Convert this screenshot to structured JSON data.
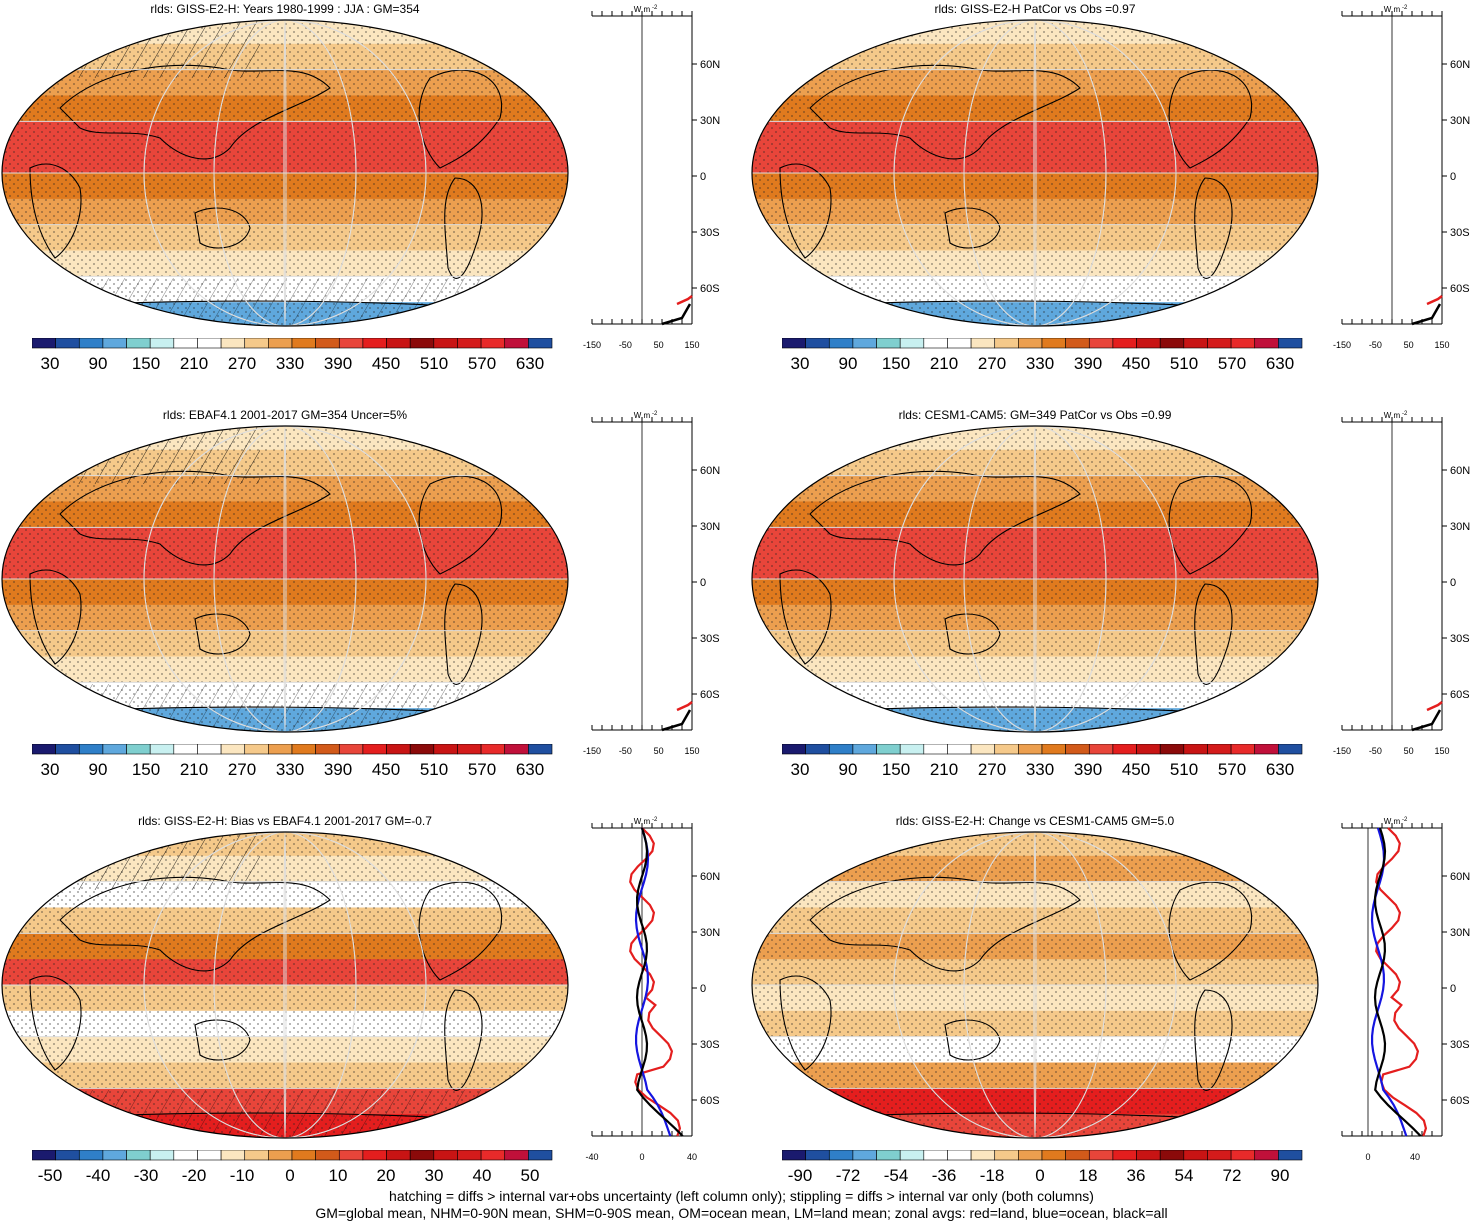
{
  "panels": [
    {
      "title": "rlds: GISS-E2-H: Years 1980-1999 : JJA : GM=354",
      "colorbar": "abs",
      "zonal_mode": "abs"
    },
    {
      "title": "rlds: GISS-E2-H PatCor vs Obs =0.97",
      "colorbar": "abs",
      "zonal_mode": "abs"
    },
    {
      "title": "rlds: EBAF4.1 2001-2017 GM=354 Uncer=5%",
      "colorbar": "abs",
      "zonal_mode": "abs"
    },
    {
      "title": "rlds: CESM1-CAM5: GM=349 PatCor vs Obs =0.99",
      "colorbar": "abs",
      "zonal_mode": "abs"
    },
    {
      "title": "rlds: GISS-E2-H: Bias vs EBAF4.1 2001-2017 GM=-0.7",
      "colorbar": "bias",
      "zonal_mode": "bias"
    },
    {
      "title": "rlds: GISS-E2-H: Change vs CESM1-CAM5 GM=5.0",
      "colorbar": "change",
      "zonal_mode": "change"
    }
  ],
  "colorbars": {
    "abs": [
      "30",
      "90",
      "150",
      "210",
      "270",
      "330",
      "390",
      "450",
      "510",
      "570",
      "630"
    ],
    "bias": [
      "-50",
      "-40",
      "-30",
      "-20",
      "-10",
      "0",
      "10",
      "20",
      "30",
      "40",
      "50"
    ],
    "change": [
      "-90",
      "-72",
      "-54",
      "-36",
      "-18",
      "0",
      "18",
      "36",
      "54",
      "72",
      "90"
    ]
  },
  "colorbar_palette": [
    "#1a1a6e",
    "#1f4fa0",
    "#2f7fc8",
    "#5fa8dd",
    "#7fcfcf",
    "#c8f0f0",
    "#ffffff",
    "#ffffff",
    "#fbe6c0",
    "#f5c98a",
    "#ec9f4f",
    "#e07a1e",
    "#d25a1a",
    "#e8453a",
    "#e41e1e",
    "#c81414",
    "#8b0a0a",
    "#c81414",
    "#d41b1b",
    "#e82a2a",
    "#c0103a",
    "#1f4fa0"
  ],
  "zonal_axis": {
    "unit": "W m",
    "unit_sup": "-2",
    "lat_labels": [
      "60N",
      "30N",
      "0",
      "30S",
      "60S"
    ],
    "abs_x_labels": [
      "-150",
      "-50",
      "50",
      "150"
    ],
    "bias_x_labels": [
      "-40",
      "0",
      "40"
    ],
    "change_x_labels": [
      "0",
      "40"
    ]
  },
  "footer": {
    "line1": "hatching = diffs > internal var+obs uncertainty (left column only); stippling = diffs > internal var only (both columns)",
    "line2": "GM=global mean, NHM=0-90N mean, SHM=0-90S mean, OM=ocean mean, LM=land mean; zonal avgs: red=land, blue=ocean, black=all"
  },
  "colors": {
    "land": "#e41e1e",
    "ocean": "#1515e0",
    "all": "#000000"
  }
}
